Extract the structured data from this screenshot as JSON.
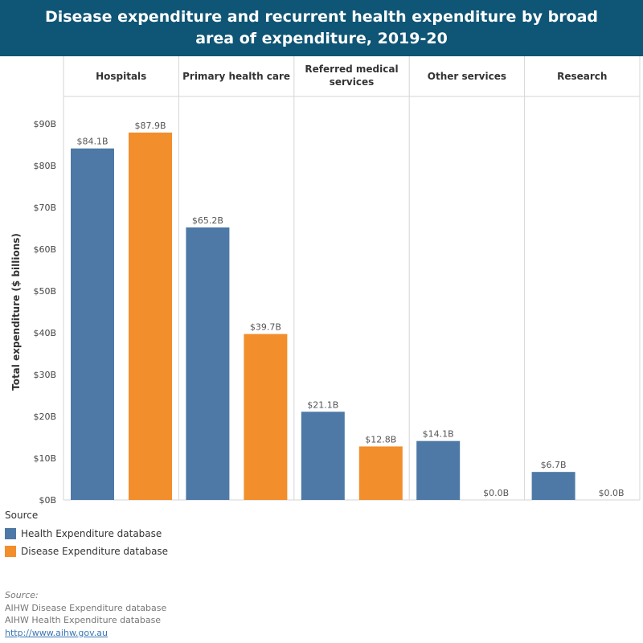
{
  "title": "Disease expenditure and recurrent health expenditure by broad area of expenditure, 2019-20",
  "colors": {
    "health": "#4e79a7",
    "disease": "#f28e2b",
    "title_bg": "#0f5575"
  },
  "chart_data": {
    "type": "bar",
    "title": "Disease expenditure and recurrent health expenditure by broad area of expenditure, 2019-20",
    "categories": [
      "Hospitals",
      "Primary health care",
      "Referred medical services",
      "Other services",
      "Research"
    ],
    "series": [
      {
        "name": "Health Expenditure database",
        "values": [
          84.1,
          65.2,
          21.1,
          14.1,
          6.7
        ],
        "labels": [
          "$84.1B",
          "$65.2B",
          "$21.1B",
          "$14.1B",
          "$6.7B"
        ]
      },
      {
        "name": "Disease Expenditure database",
        "values": [
          87.9,
          39.7,
          12.8,
          0.0,
          0.0
        ],
        "labels": [
          "$87.9B",
          "$39.7B",
          "$12.8B",
          "$0.0B",
          "$0.0B"
        ]
      }
    ],
    "xlabel": "",
    "ylabel": "Total expenditure ($ billions)",
    "ylim": [
      0,
      90
    ],
    "yticks": [
      0,
      10,
      20,
      30,
      40,
      50,
      60,
      70,
      80,
      90
    ],
    "ytick_labels": [
      "$0B",
      "$10B",
      "$20B",
      "$30B",
      "$40B",
      "$50B",
      "$60B",
      "$70B",
      "$80B",
      "$90B"
    ],
    "grid": false,
    "legend_position": "bottom-left"
  },
  "legend": {
    "title": "Source",
    "items": [
      "Health Expenditure database",
      "Disease Expenditure database"
    ]
  },
  "source": {
    "label": "Source:",
    "lines": [
      "AIHW Disease Expenditure database",
      "AIHW Health Expenditure database"
    ],
    "link": "http://www.aihw.gov.au"
  }
}
